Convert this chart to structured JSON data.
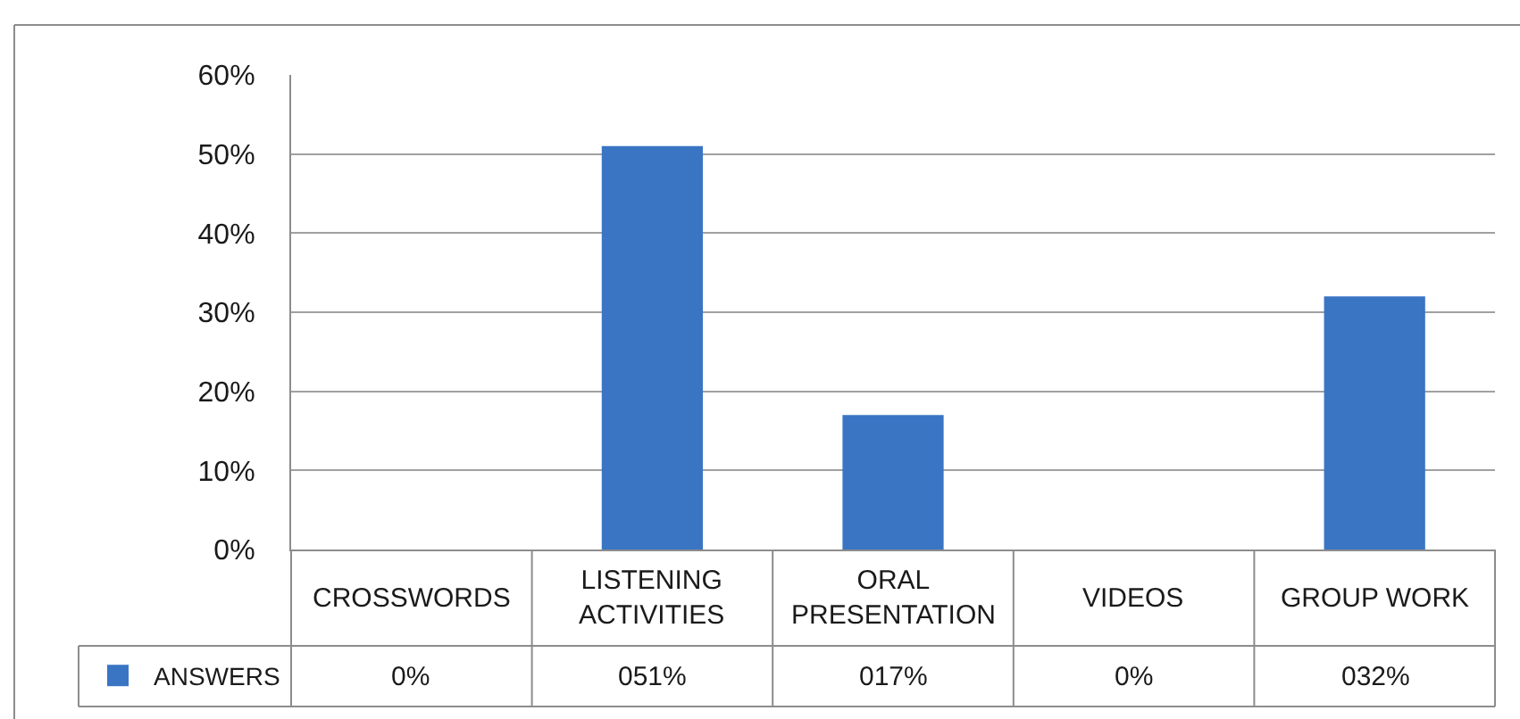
{
  "chart_data": {
    "type": "bar",
    "categories": [
      "CROSSWORDS",
      "LISTENING ACTIVITIES",
      "ORAL PRESENTATION",
      "VIDEOS",
      "GROUP WORK"
    ],
    "series": [
      {
        "name": "ANSWERS",
        "color": "#3a75c4",
        "values": [
          0,
          51,
          17,
          0,
          32
        ],
        "value_labels": [
          "0%",
          "051%",
          "017%",
          "0%",
          "032%"
        ]
      }
    ],
    "ylim": [
      0,
      60
    ],
    "yticks": [
      {
        "value": 0,
        "label": "0%"
      },
      {
        "value": 10,
        "label": "10%"
      },
      {
        "value": 20,
        "label": "20%"
      },
      {
        "value": 30,
        "label": "30%"
      },
      {
        "value": 40,
        "label": "40%"
      },
      {
        "value": 50,
        "label": "50%"
      },
      {
        "value": 60,
        "label": "60%"
      }
    ],
    "grid": "y",
    "legend": "bottom left"
  }
}
